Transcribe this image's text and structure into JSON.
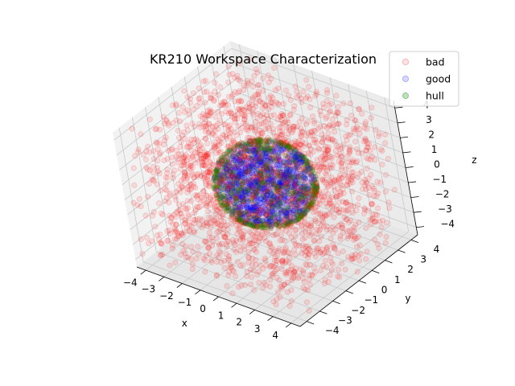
{
  "chart_data": {
    "type": "scatter",
    "projection": "3d",
    "title": "KR210 Workspace Characterization",
    "xlabel": "x",
    "ylabel": "y",
    "zlabel": "z",
    "xlim": [
      -4.5,
      4.5
    ],
    "ylim": [
      -4.5,
      4.5
    ],
    "zlim": [
      -4.5,
      4.5
    ],
    "ticks": {
      "x": [
        "−4",
        "−3",
        "−2",
        "−1",
        "0",
        "1",
        "2",
        "3",
        "4"
      ],
      "y": [
        "−4",
        "−3",
        "−2",
        "−1",
        "0",
        "1",
        "2",
        "3",
        "4"
      ],
      "z": [
        "−4",
        "−3",
        "−2",
        "−1",
        "0",
        "1",
        "2",
        "3",
        "4"
      ]
    },
    "grid": true,
    "legend_position": "top-right",
    "series": [
      {
        "name": "bad",
        "color": "#ff0000",
        "alpha": 0.1,
        "distribution": "uniform in cube [-4.3,4.3]^3 outside sphere r≈2.3"
      },
      {
        "name": "good",
        "color": "#0000ff",
        "alpha": 0.15,
        "distribution": "uniform inside sphere r≈2.3"
      },
      {
        "name": "hull",
        "color": "#008000",
        "alpha": 0.2,
        "distribution": "on sphere surface r≈2.3"
      }
    ]
  }
}
